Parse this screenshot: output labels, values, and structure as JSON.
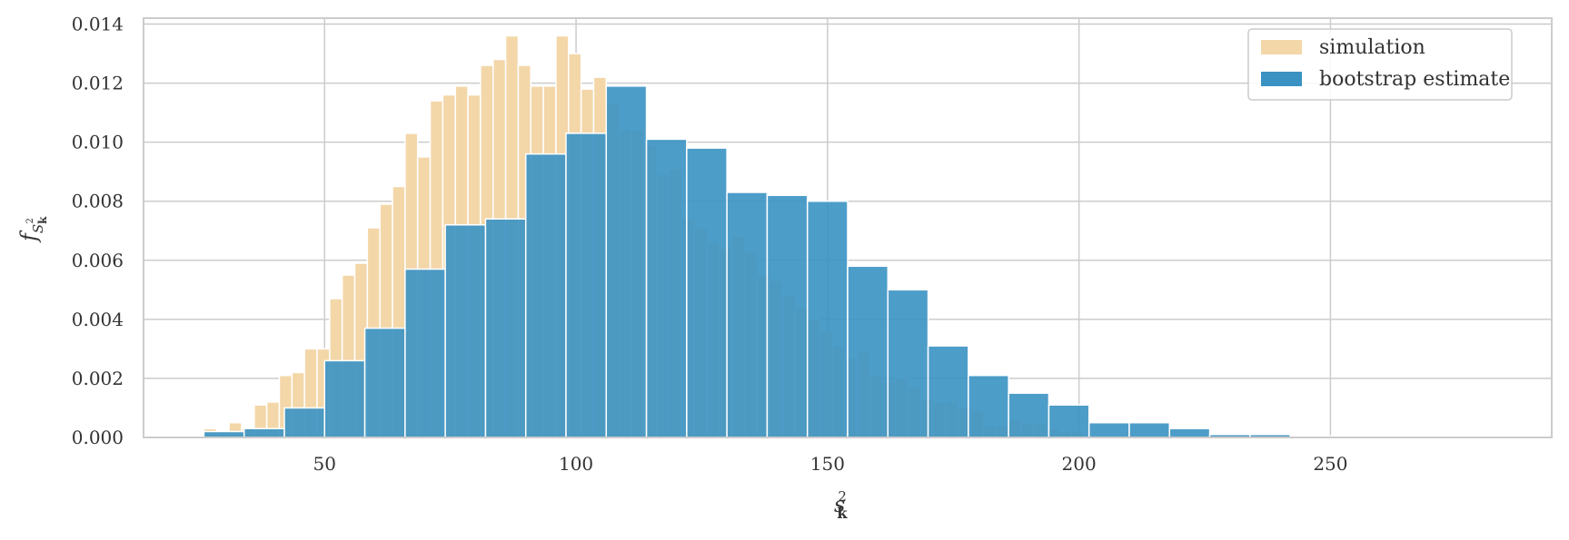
{
  "chart_data": {
    "type": "bar",
    "title": "",
    "xlabel": {
      "base": "s",
      "sub": "k",
      "sup": "2"
    },
    "ylabel": {
      "base": "f",
      "sub_base": "S",
      "sub_sub": "k",
      "sub_sup": "2"
    },
    "xlim": [
      14,
      294
    ],
    "ylim": [
      0,
      0.0142
    ],
    "xticks": [
      50,
      100,
      150,
      200,
      250
    ],
    "xtick_labels": [
      "50",
      "100",
      "150",
      "200",
      "250"
    ],
    "yticks": [
      0,
      0.002,
      0.004,
      0.006,
      0.008,
      0.01,
      0.012,
      0.014
    ],
    "ytick_labels": [
      "0.000",
      "0.002",
      "0.004",
      "0.006",
      "0.008",
      "0.010",
      "0.012",
      "0.014"
    ],
    "grid": true,
    "legend_position": "top-right",
    "series": [
      {
        "name": "simulation",
        "color": "#f3d7a9",
        "edgecolor": "#ffffff",
        "bin_start": 26,
        "bin_width": 2.5,
        "values": [
          0.0003,
          0.0002,
          0.0005,
          0.0003,
          0.0011,
          0.0012,
          0.0021,
          0.0022,
          0.003,
          0.003,
          0.0047,
          0.0055,
          0.0059,
          0.0071,
          0.0079,
          0.0085,
          0.0103,
          0.0095,
          0.0114,
          0.0116,
          0.0119,
          0.0116,
          0.0126,
          0.0128,
          0.0136,
          0.0126,
          0.0119,
          0.0119,
          0.0136,
          0.013,
          0.0118,
          0.0122,
          0.0113,
          0.0104,
          0.0104,
          0.0099,
          0.0089,
          0.0091,
          0.0074,
          0.0071,
          0.0066,
          0.0064,
          0.0068,
          0.0063,
          0.0055,
          0.0053,
          0.0048,
          0.0044,
          0.004,
          0.0036,
          0.0031,
          0.0027,
          0.0029,
          0.0021,
          0.0019,
          0.002,
          0.0017,
          0.0013,
          0.0012,
          0.0012,
          0.001,
          0.0009,
          0.0004,
          0.0004,
          0.0006,
          0.0005,
          0.0005,
          0.0003,
          0.0002,
          0.0002
        ]
      },
      {
        "name": "bootstrap estimate",
        "color": "#3a92c3",
        "edgecolor": "#ffffff",
        "bin_start": 26,
        "bin_width": 8,
        "values": [
          0.0002,
          0.0003,
          0.001,
          0.0026,
          0.0037,
          0.0057,
          0.0072,
          0.0074,
          0.0096,
          0.0103,
          0.0119,
          0.0101,
          0.0098,
          0.0083,
          0.0082,
          0.008,
          0.0058,
          0.005,
          0.0031,
          0.0021,
          0.0015,
          0.0011,
          0.0005,
          0.0005,
          0.0003,
          0.0001,
          0.0001,
          5e-05,
          2e-05,
          1e-05
        ]
      }
    ]
  }
}
